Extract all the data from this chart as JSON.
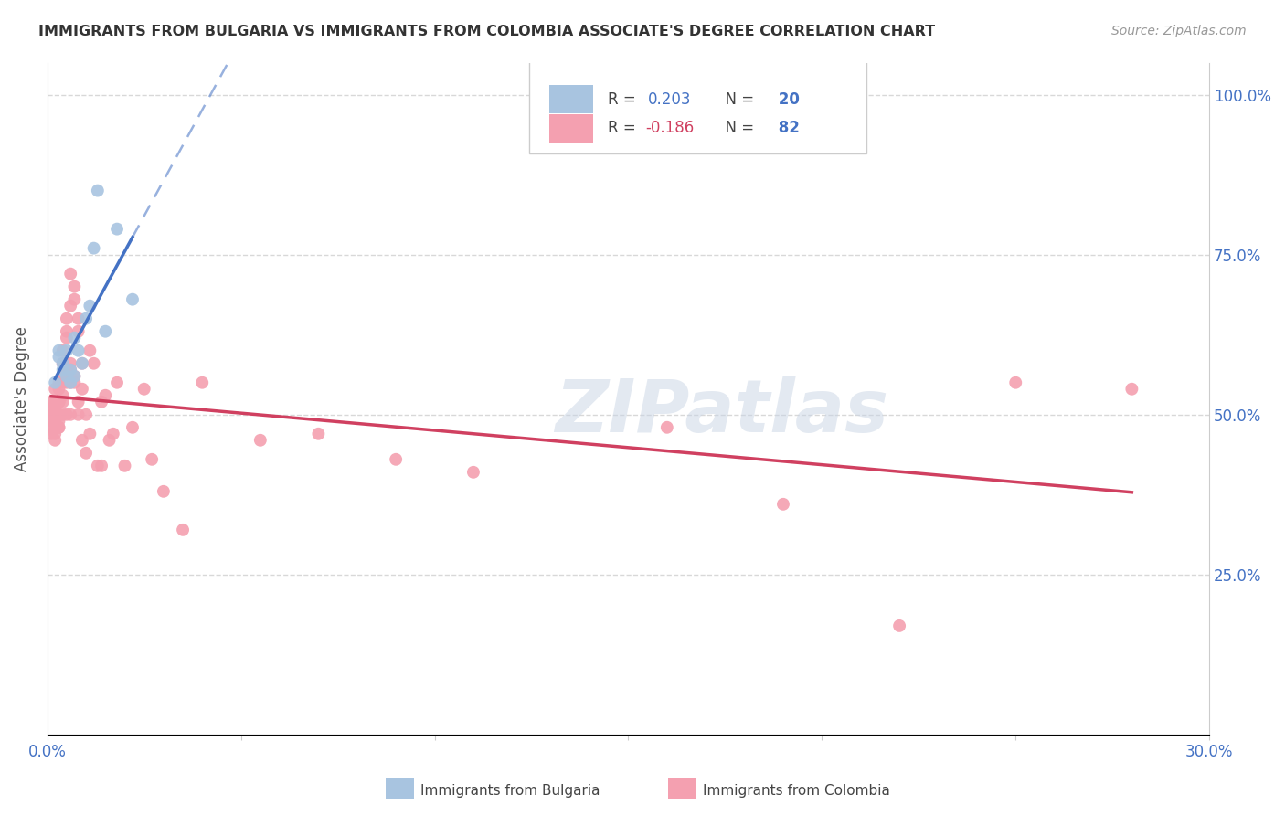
{
  "title": "IMMIGRANTS FROM BULGARIA VS IMMIGRANTS FROM COLOMBIA ASSOCIATE'S DEGREE CORRELATION CHART",
  "source": "Source: ZipAtlas.com",
  "ylabel": "Associate's Degree",
  "xlim": [
    0.0,
    0.3
  ],
  "ylim": [
    0.0,
    1.05
  ],
  "bg_color": "#ffffff",
  "grid_color": "#d8d8d8",
  "legend_R_bulgaria": "R =  0.203",
  "legend_N_bulgaria": "20",
  "legend_R_colombia": "R = -0.186",
  "legend_N_colombia": "82",
  "bulgaria_color": "#a8c4e0",
  "colombia_color": "#f4a0b0",
  "trendline_bulgaria_color": "#4472c4",
  "trendline_colombia_color": "#d04060",
  "watermark": "ZIPatlas",
  "bulgaria_x": [
    0.002,
    0.003,
    0.003,
    0.004,
    0.004,
    0.005,
    0.005,
    0.006,
    0.006,
    0.007,
    0.007,
    0.008,
    0.009,
    0.01,
    0.011,
    0.012,
    0.013,
    0.015,
    0.018,
    0.022
  ],
  "bulgaria_y": [
    0.55,
    0.6,
    0.59,
    0.57,
    0.58,
    0.56,
    0.6,
    0.55,
    0.57,
    0.56,
    0.62,
    0.6,
    0.58,
    0.65,
    0.67,
    0.76,
    0.85,
    0.63,
    0.79,
    0.68
  ],
  "colombia_x": [
    0.001,
    0.001,
    0.001,
    0.001,
    0.001,
    0.001,
    0.002,
    0.002,
    0.002,
    0.002,
    0.002,
    0.002,
    0.002,
    0.002,
    0.002,
    0.003,
    0.003,
    0.003,
    0.003,
    0.003,
    0.003,
    0.003,
    0.003,
    0.003,
    0.004,
    0.004,
    0.004,
    0.004,
    0.004,
    0.004,
    0.004,
    0.005,
    0.005,
    0.005,
    0.005,
    0.005,
    0.005,
    0.006,
    0.006,
    0.006,
    0.006,
    0.006,
    0.006,
    0.007,
    0.007,
    0.007,
    0.007,
    0.008,
    0.008,
    0.008,
    0.008,
    0.009,
    0.009,
    0.009,
    0.01,
    0.01,
    0.011,
    0.011,
    0.012,
    0.013,
    0.014,
    0.014,
    0.015,
    0.016,
    0.017,
    0.018,
    0.02,
    0.022,
    0.025,
    0.027,
    0.03,
    0.035,
    0.04,
    0.055,
    0.07,
    0.09,
    0.11,
    0.16,
    0.19,
    0.22,
    0.25,
    0.28
  ],
  "colombia_y": [
    0.5,
    0.49,
    0.51,
    0.52,
    0.48,
    0.47,
    0.52,
    0.5,
    0.49,
    0.47,
    0.54,
    0.51,
    0.5,
    0.48,
    0.46,
    0.52,
    0.5,
    0.49,
    0.54,
    0.52,
    0.48,
    0.55,
    0.52,
    0.48,
    0.56,
    0.53,
    0.5,
    0.58,
    0.55,
    0.52,
    0.6,
    0.57,
    0.5,
    0.63,
    0.55,
    0.65,
    0.62,
    0.57,
    0.5,
    0.67,
    0.55,
    0.72,
    0.58,
    0.7,
    0.56,
    0.68,
    0.55,
    0.65,
    0.52,
    0.63,
    0.5,
    0.58,
    0.46,
    0.54,
    0.44,
    0.5,
    0.6,
    0.47,
    0.58,
    0.42,
    0.52,
    0.42,
    0.53,
    0.46,
    0.47,
    0.55,
    0.42,
    0.48,
    0.54,
    0.43,
    0.38,
    0.32,
    0.55,
    0.46,
    0.47,
    0.43,
    0.41,
    0.48,
    0.36,
    0.17,
    0.55,
    0.54
  ]
}
